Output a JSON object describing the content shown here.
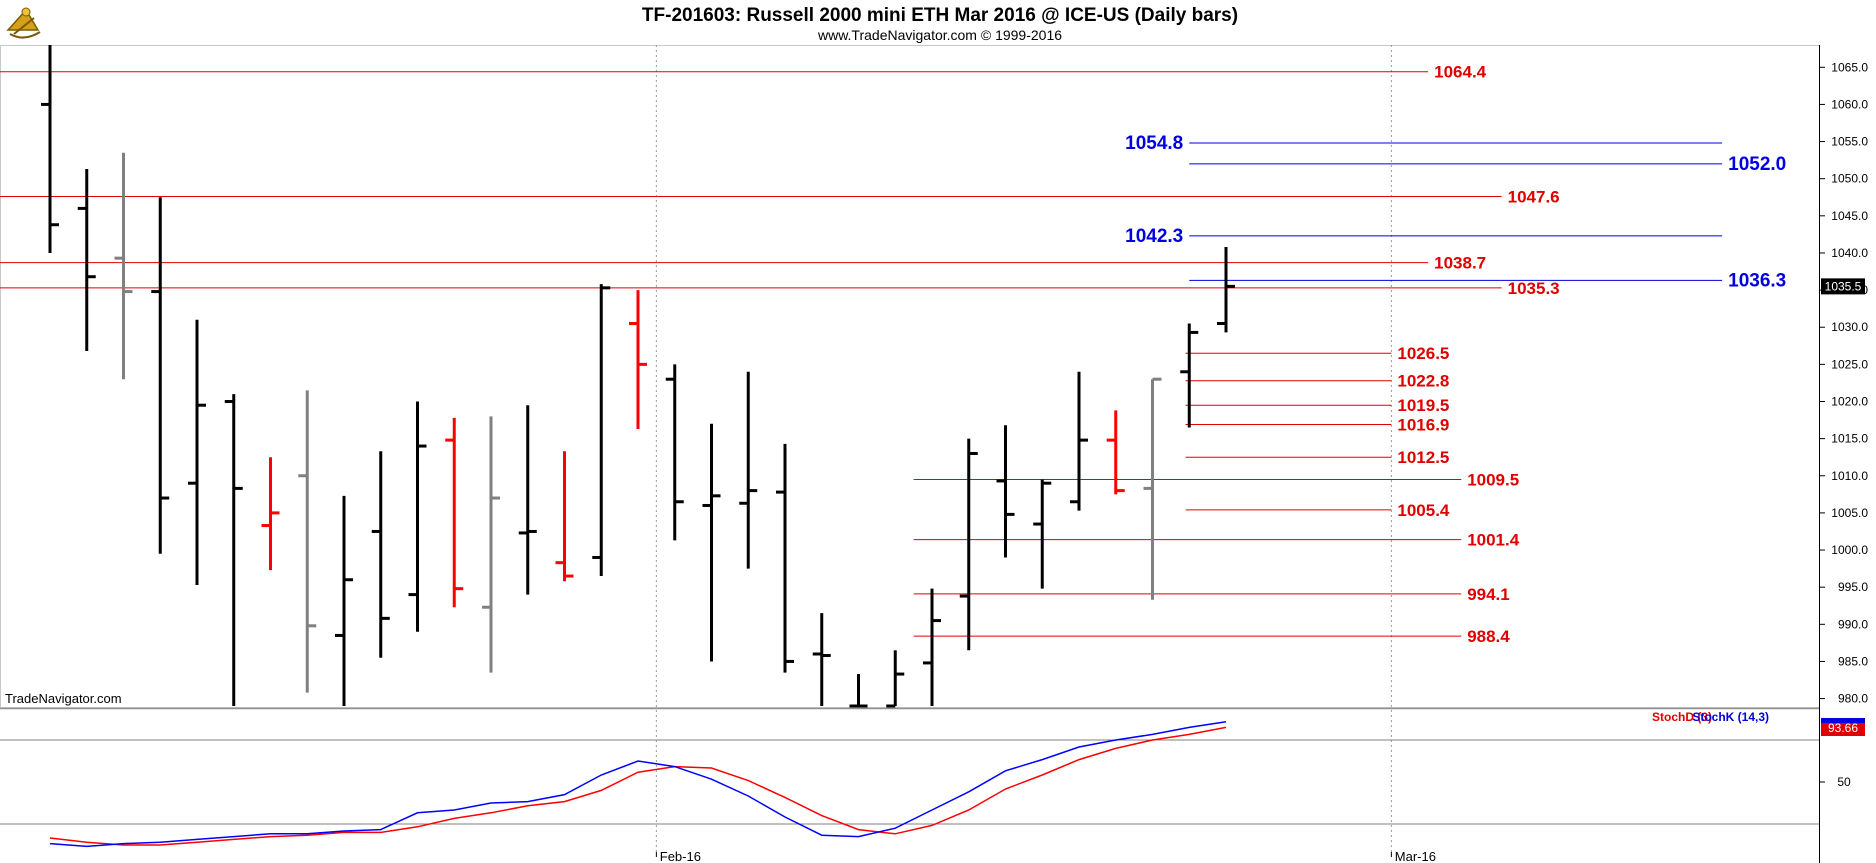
{
  "header": {
    "title": "TF-201603:  Russell 2000 mini ETH Mar 2016 @ ICE-US  (Daily bars)",
    "subtitle": "www.TradeNavigator.com © 1999-2016"
  },
  "watermark": "TradeNavigator.com",
  "logo_icon": "sextant-logo-icon",
  "colors": {
    "up": "#000000",
    "down": "#ff0000",
    "neutral": "#808080",
    "level_red": "#e00000",
    "level_blue": "#0000e0",
    "stoch_d": "#ff0000",
    "stoch_k": "#0000ff"
  },
  "chart_data": {
    "type": "bar",
    "style": "ohlc",
    "title": "TF-201603:  Russell 2000 mini ETH Mar 2016 @ ICE-US  (Daily bars)",
    "ylim": [
      979,
      1068
    ],
    "yticks": [
      980,
      985,
      990,
      995,
      1000,
      1005,
      1010,
      1015,
      1020,
      1025,
      1030,
      1035,
      1040,
      1045,
      1050,
      1055,
      1060,
      1065
    ],
    "ytick_labels": [
      "980.0",
      "985.0",
      "990.0",
      "995.0",
      "1000.0",
      "1005.0",
      "1010.0",
      "1015.0",
      "1020.0",
      "1025.0",
      "1030.0",
      "1035.0",
      "1040.0",
      "1045.0",
      "1050.0",
      "1055.0",
      "1060.0",
      "1065.0"
    ],
    "x_labels": [
      {
        "label": "Feb-16",
        "bar": 16.5
      },
      {
        "label": "Mar-16",
        "bar": 36.5
      }
    ],
    "bars": [
      {
        "o": 1060.0,
        "h": 1068.0,
        "l": 1040.0,
        "c": 1043.8,
        "color": "up"
      },
      {
        "o": 1046.0,
        "h": 1051.3,
        "l": 1026.8,
        "c": 1036.8,
        "color": "up"
      },
      {
        "o": 1039.3,
        "h": 1053.5,
        "l": 1023.0,
        "c": 1034.8,
        "color": "neutral"
      },
      {
        "o": 1034.8,
        "h": 1047.5,
        "l": 999.5,
        "c": 1007.0,
        "color": "up"
      },
      {
        "o": 1009.0,
        "h": 1031.0,
        "l": 995.3,
        "c": 1019.5,
        "color": "up"
      },
      {
        "o": 1020.0,
        "h": 1021.0,
        "l": 979.0,
        "c": 1008.3,
        "color": "up"
      },
      {
        "o": 1003.3,
        "h": 1012.5,
        "l": 997.3,
        "c": 1005.0,
        "color": "down"
      },
      {
        "o": 1010.0,
        "h": 1021.5,
        "l": 980.8,
        "c": 989.8,
        "color": "neutral"
      },
      {
        "o": 988.5,
        "h": 1007.3,
        "l": 979.0,
        "c": 996.0,
        "color": "up"
      },
      {
        "o": 1002.5,
        "h": 1013.3,
        "l": 985.5,
        "c": 990.8,
        "color": "up"
      },
      {
        "o": 994.0,
        "h": 1020.0,
        "l": 989.0,
        "c": 1014.0,
        "color": "up"
      },
      {
        "o": 1014.8,
        "h": 1017.8,
        "l": 992.3,
        "c": 994.8,
        "color": "down"
      },
      {
        "o": 992.3,
        "h": 1018.0,
        "l": 983.5,
        "c": 1007.0,
        "color": "neutral"
      },
      {
        "o": 1002.3,
        "h": 1019.5,
        "l": 994.0,
        "c": 1002.5,
        "color": "up"
      },
      {
        "o": 998.3,
        "h": 1013.3,
        "l": 995.8,
        "c": 996.5,
        "color": "down"
      },
      {
        "o": 999.0,
        "h": 1035.8,
        "l": 996.5,
        "c": 1035.3,
        "color": "up"
      },
      {
        "o": 1030.5,
        "h": 1035.0,
        "l": 1016.3,
        "c": 1025.0,
        "color": "down"
      },
      {
        "o": 1023.0,
        "h": 1025.0,
        "l": 1001.3,
        "c": 1006.5,
        "color": "up"
      },
      {
        "o": 1006.0,
        "h": 1017.0,
        "l": 985.0,
        "c": 1007.3,
        "color": "up"
      },
      {
        "o": 1006.3,
        "h": 1024.0,
        "l": 997.5,
        "c": 1008.0,
        "color": "up"
      },
      {
        "o": 1007.8,
        "h": 1014.3,
        "l": 983.5,
        "c": 985.0,
        "color": "up"
      },
      {
        "o": 986.0,
        "h": 991.5,
        "l": 979.0,
        "c": 985.8,
        "color": "up"
      },
      {
        "o": 979.0,
        "h": 983.3,
        "l": 979.0,
        "c": 979.0,
        "color": "up"
      },
      {
        "o": 979.0,
        "h": 986.5,
        "l": 979.0,
        "c": 983.3,
        "color": "up"
      },
      {
        "o": 984.8,
        "h": 994.8,
        "l": 979.0,
        "c": 990.5,
        "color": "up"
      },
      {
        "o": 993.8,
        "h": 1015.0,
        "l": 986.5,
        "c": 1013.0,
        "color": "up"
      },
      {
        "o": 1009.3,
        "h": 1016.8,
        "l": 999.0,
        "c": 1004.8,
        "color": "up"
      },
      {
        "o": 1003.5,
        "h": 1009.5,
        "l": 994.8,
        "c": 1009.0,
        "color": "up"
      },
      {
        "o": 1006.5,
        "h": 1024.0,
        "l": 1005.3,
        "c": 1014.8,
        "color": "up"
      },
      {
        "o": 1014.8,
        "h": 1018.8,
        "l": 1007.5,
        "c": 1008.0,
        "color": "down"
      },
      {
        "o": 1008.3,
        "h": 1023.0,
        "l": 993.3,
        "c": 1023.0,
        "color": "neutral"
      },
      {
        "o": 1024.0,
        "h": 1030.5,
        "l": 1016.5,
        "c": 1029.3,
        "color": "up"
      },
      {
        "o": 1030.5,
        "h": 1040.8,
        "l": 1029.3,
        "c": 1035.5,
        "color": "up"
      }
    ],
    "levels": [
      {
        "value": 1064.4,
        "label": "1064.4",
        "color": "red",
        "from_bar": 0,
        "to_bar": 37.5,
        "label_side": "right"
      },
      {
        "value": 1047.6,
        "label": "1047.6",
        "color": "red",
        "from_bar": 0,
        "to_bar": 39.5,
        "label_side": "right"
      },
      {
        "value": 1038.7,
        "label": "1038.7",
        "color": "red",
        "from_bar": 0,
        "to_bar": 37.5,
        "label_side": "right"
      },
      {
        "value": 1035.3,
        "label": "1035.3",
        "color": "red",
        "from_bar": 0,
        "to_bar": 39.5,
        "label_side": "right"
      },
      {
        "value": 1026.5,
        "label": "1026.5",
        "color": "red",
        "from_bar": 30.9,
        "to_bar": 36.5,
        "label_side": "right"
      },
      {
        "value": 1022.8,
        "label": "1022.8",
        "color": "red",
        "from_bar": 30.9,
        "to_bar": 36.5,
        "label_side": "right"
      },
      {
        "value": 1019.5,
        "label": "1019.5",
        "color": "red",
        "from_bar": 30.9,
        "to_bar": 36.5,
        "label_side": "right"
      },
      {
        "value": 1016.9,
        "label": "1016.9",
        "color": "red",
        "from_bar": 30.9,
        "to_bar": 36.5,
        "label_side": "right"
      },
      {
        "value": 1012.5,
        "label": "1012.5",
        "color": "red",
        "from_bar": 30.9,
        "to_bar": 36.5,
        "label_side": "right"
      },
      {
        "value": 1009.5,
        "label": "1009.5",
        "color": "red",
        "from_bar": 23.5,
        "to_bar": 38.4,
        "label_side": "right"
      },
      {
        "value": 1005.4,
        "label": "1005.4",
        "color": "red",
        "from_bar": 30.9,
        "to_bar": 36.5,
        "label_side": "right"
      },
      {
        "value": 1001.4,
        "label": "1001.4",
        "color": "red",
        "from_bar": 23.5,
        "to_bar": 38.4,
        "label_side": "right"
      },
      {
        "value": 994.1,
        "label": "994.1",
        "color": "red",
        "from_bar": 23.5,
        "to_bar": 38.4,
        "label_side": "right"
      },
      {
        "value": 988.4,
        "label": "988.4",
        "color": "red",
        "from_bar": 23.5,
        "to_bar": 38.4,
        "label_side": "right"
      },
      {
        "value": 1054.8,
        "label": "1054.8",
        "color": "blue",
        "from_bar": 31.0,
        "to_bar": 45.5,
        "label_side": "left"
      },
      {
        "value": 1052.0,
        "label": "1052.0",
        "color": "blue",
        "from_bar": 31.0,
        "to_bar": 45.5,
        "label_side": "right"
      },
      {
        "value": 1042.3,
        "label": "1042.3",
        "color": "blue",
        "from_bar": 31.0,
        "to_bar": 45.5,
        "label_side": "left"
      },
      {
        "value": 1036.3,
        "label": "1036.3",
        "color": "blue",
        "from_bar": 31.0,
        "to_bar": 45.5,
        "label_side": "right"
      }
    ],
    "last_price": "1035.5",
    "grid": {
      "vertical_dashed_at_bars": [
        16.5,
        36.5
      ]
    },
    "stochastic": {
      "legend": [
        {
          "name": "StochD (3)",
          "color": "red"
        },
        {
          "name": "StochK (14,3)",
          "color": "blue"
        }
      ],
      "ylim": [
        0,
        100
      ],
      "ytick_labels": [
        "50"
      ],
      "upper_line": 80,
      "lower_line": 20,
      "k": [
        6,
        4,
        6,
        7,
        9,
        11,
        13,
        13,
        15,
        16,
        28,
        30,
        35,
        36,
        41,
        55,
        65,
        61,
        52,
        40,
        25,
        12,
        11,
        17,
        30,
        43,
        58,
        66,
        75,
        80,
        84,
        89,
        93
      ],
      "d": [
        10,
        7,
        5,
        5,
        7,
        9,
        11,
        12,
        14,
        14,
        18,
        24,
        28,
        33,
        36,
        44,
        57,
        61,
        60,
        51,
        39,
        26,
        16,
        13,
        19,
        30,
        45,
        55,
        66,
        74,
        80,
        84,
        89
      ],
      "last_value": "93.66"
    }
  }
}
